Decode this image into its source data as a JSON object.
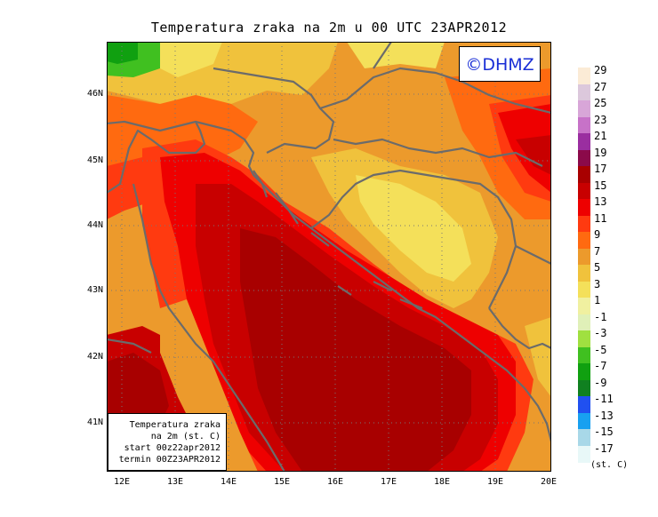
{
  "title": "Temperatura zraka na 2m u 00 UTC 23APR2012",
  "copyright": "©DHMZ",
  "infobox": {
    "line1": "Temperatura zraka",
    "line2": "na 2m (st. C)",
    "line3": "start 00z22apr2012",
    "line4": "termin 00Z23APR2012"
  },
  "lat_labels": [
    "46N",
    "45N",
    "44N",
    "43N",
    "42N",
    "41N"
  ],
  "lon_labels": [
    "12E",
    "13E",
    "14E",
    "15E",
    "16E",
    "17E",
    "18E",
    "19E",
    "20E"
  ],
  "legend": {
    "unit": "(st. C)",
    "labels": [
      "29",
      "27",
      "25",
      "23",
      "21",
      "19",
      "17",
      "15",
      "13",
      "11",
      "9",
      "7",
      "5",
      "3",
      "1",
      "-1",
      "-3",
      "-5",
      "-7",
      "-9",
      "-11",
      "-13",
      "-15",
      "-17"
    ],
    "colors": [
      "#fbebd6",
      "#dcc8dc",
      "#d8a6d8",
      "#c772c8",
      "#9a2ea0",
      "#8b0a4a",
      "#a80000",
      "#c80000",
      "#ee0000",
      "#ff3a10",
      "#ff6a10",
      "#ec9a2c",
      "#f0c23c",
      "#f4e05a",
      "#f0f0a0",
      "#e0f0b8",
      "#a0e040",
      "#40c020",
      "#10a010",
      "#108020",
      "#2050f0",
      "#18a0f0",
      "#a8d8e8",
      "#e8f8f8"
    ]
  }
}
